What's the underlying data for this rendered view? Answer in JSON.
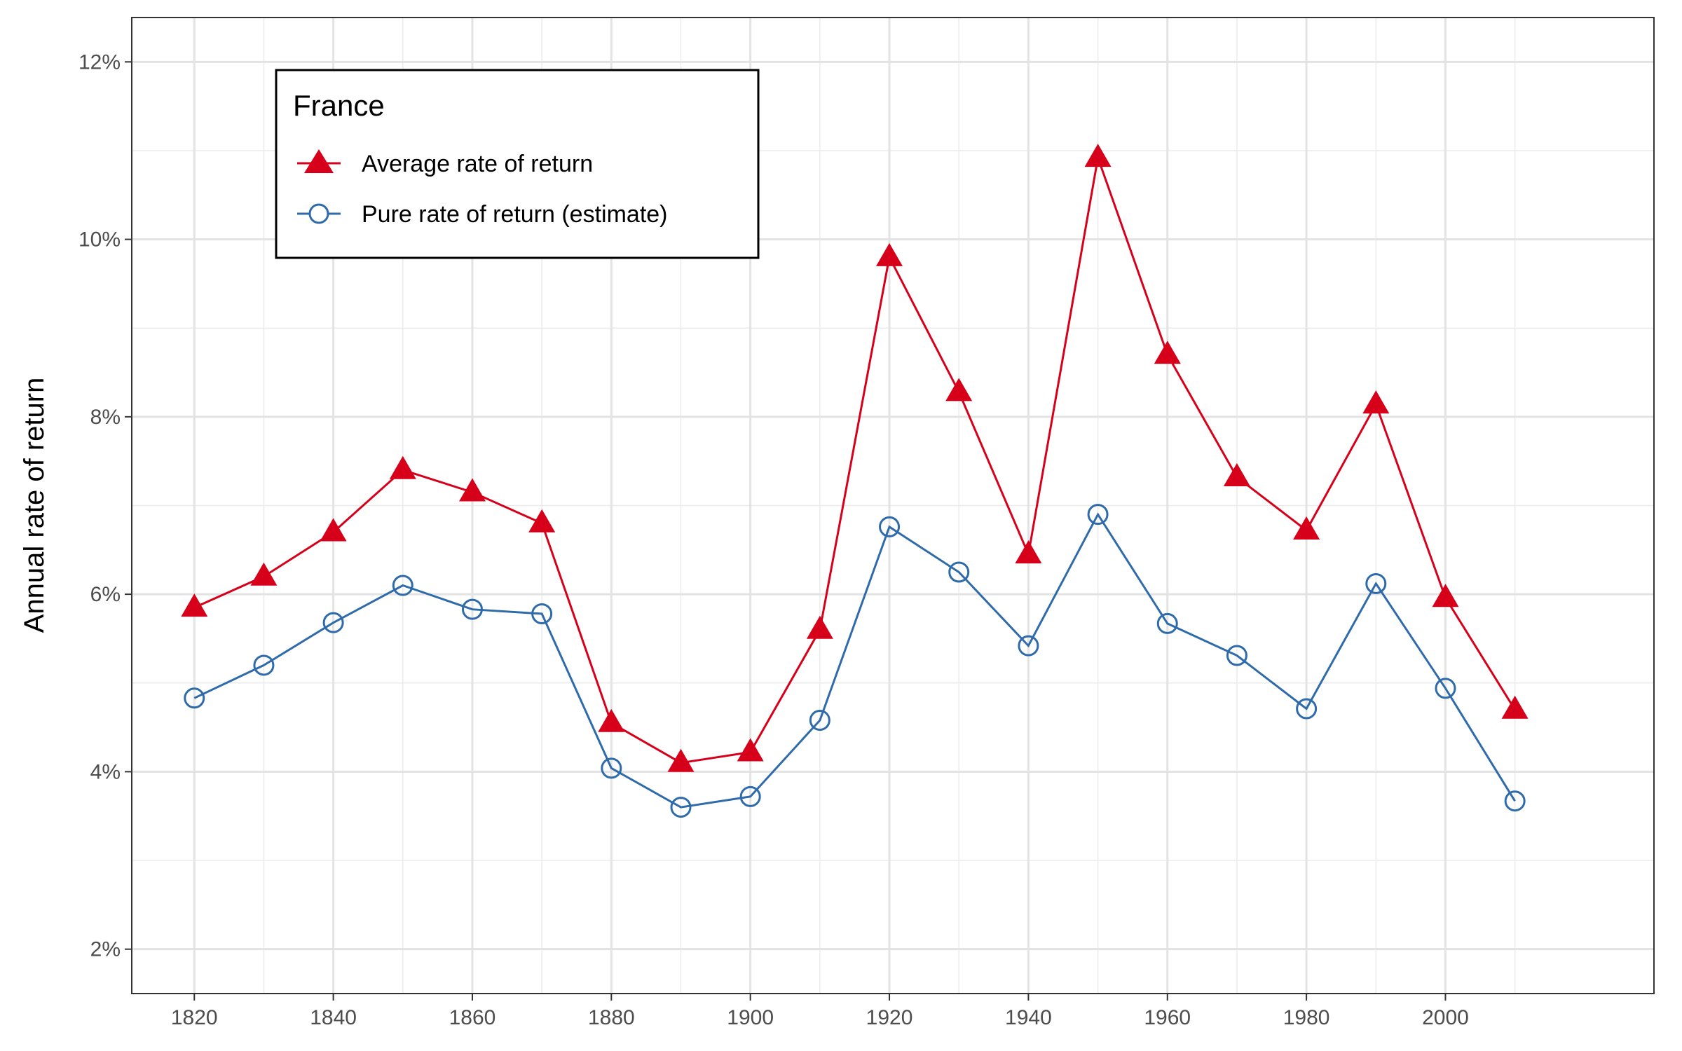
{
  "chart_data": {
    "type": "line",
    "title": "",
    "xlabel": "",
    "ylabel": "Annual rate of return",
    "x": [
      1820,
      1830,
      1840,
      1850,
      1860,
      1870,
      1880,
      1890,
      1900,
      1910,
      1920,
      1930,
      1940,
      1950,
      1960,
      1970,
      1980,
      1990,
      2000,
      2010
    ],
    "xlim": [
      1811,
      2030
    ],
    "ylim": [
      1.5,
      12.5
    ],
    "x_ticks": [
      1820,
      1840,
      1860,
      1880,
      1900,
      1920,
      1940,
      1960,
      1980,
      2000
    ],
    "x_tick_labels": [
      "1820",
      "1840",
      "1860",
      "1880",
      "1900",
      "1920",
      "1940",
      "1960",
      "1980",
      "2000"
    ],
    "y_ticks": [
      2,
      4,
      6,
      8,
      10,
      12
    ],
    "y_tick_labels": [
      "2%",
      "4%",
      "6%",
      "8%",
      "10%",
      "12%"
    ],
    "grid": true,
    "legend": {
      "title": "France",
      "placement": "top-left",
      "entries": [
        {
          "label": "Average rate of return",
          "marker": "triangle-filled",
          "color": "#d7001a"
        },
        {
          "label": "Pure rate of return (estimate)",
          "marker": "circle-open",
          "color": "#2f6bab"
        }
      ]
    },
    "series": [
      {
        "name": "Average rate of return",
        "color": "#d7001a",
        "marker": "triangle-filled",
        "values": [
          5.85,
          6.2,
          6.7,
          7.4,
          7.15,
          6.8,
          4.55,
          4.1,
          4.22,
          5.6,
          9.8,
          8.28,
          6.45,
          10.92,
          8.7,
          7.32,
          6.72,
          8.14,
          5.96,
          4.7
        ]
      },
      {
        "name": "Pure rate of return (estimate)",
        "color": "#2f6bab",
        "marker": "circle-open",
        "values": [
          4.83,
          5.2,
          5.68,
          6.1,
          5.83,
          5.78,
          4.04,
          3.6,
          3.72,
          4.58,
          6.76,
          6.25,
          5.42,
          6.9,
          5.67,
          5.31,
          4.71,
          6.12,
          4.94,
          3.67
        ]
      }
    ]
  }
}
